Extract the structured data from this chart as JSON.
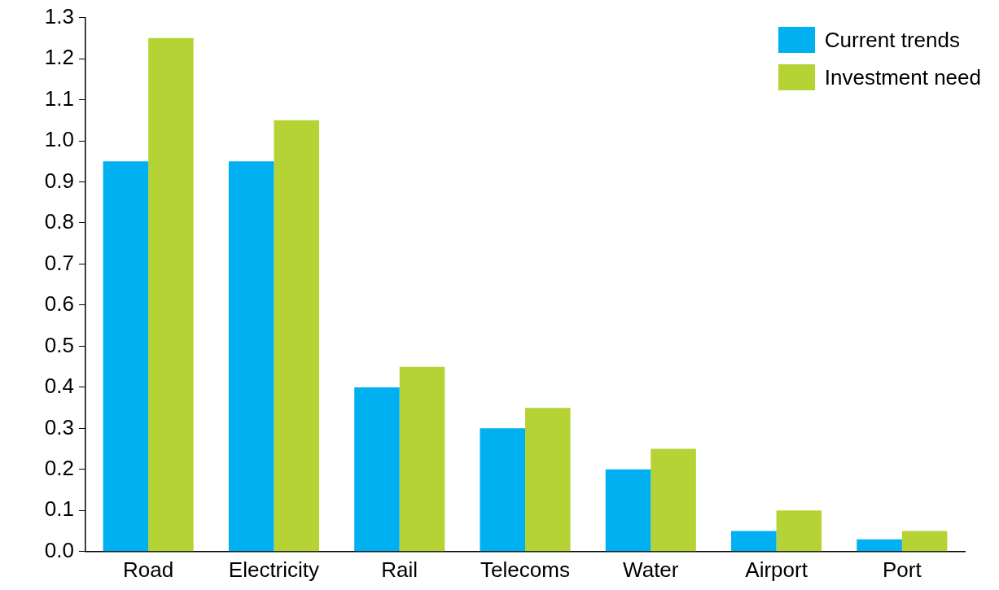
{
  "chart_data": {
    "type": "bar",
    "categories": [
      "Road",
      "Electricity",
      "Rail",
      "Telecoms",
      "Water",
      "Airport",
      "Port"
    ],
    "series": [
      {
        "name": "Current trends",
        "color": "#00b0f0",
        "values": [
          0.95,
          0.95,
          0.4,
          0.3,
          0.2,
          0.05,
          0.03
        ]
      },
      {
        "name": "Investment need",
        "color": "#b5d334",
        "values": [
          1.25,
          1.05,
          0.45,
          0.35,
          0.25,
          0.1,
          0.05
        ]
      }
    ],
    "ylim": [
      0,
      1.3
    ],
    "yticks": [
      {
        "value": 0,
        "label": "0.0"
      },
      0.1,
      0.2,
      0.3,
      0.4,
      0.5,
      0.6,
      0.7,
      0.8,
      0.9,
      {
        "value": 1,
        "label": "1.0"
      },
      1.1,
      1.2,
      1.3
    ],
    "grid": false,
    "legend": "top right"
  }
}
